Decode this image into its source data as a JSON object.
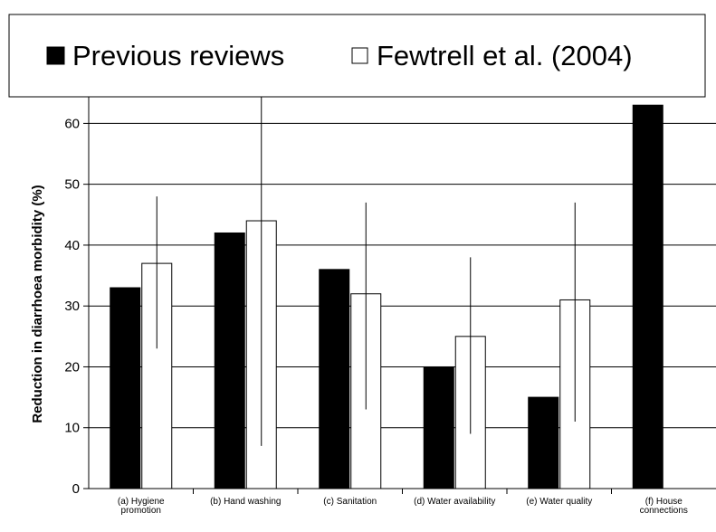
{
  "chart_data": {
    "type": "bar",
    "ylabel": "Reduction in diarrhoea morbidity (%)",
    "xlabel": "",
    "ylim": [
      0,
      66.6
    ],
    "yticks": [
      "0",
      "10",
      "20",
      "30",
      "40",
      "50",
      "60"
    ],
    "grid": true,
    "legend_position": "top",
    "categories": [
      [
        "(a) Hygiene",
        "promotion"
      ],
      [
        "(b) Hand washing"
      ],
      [
        "(c) Sanitation"
      ],
      [
        "(d) Water availability"
      ],
      [
        "(e) Water quality"
      ],
      [
        "(f) House",
        "connections"
      ]
    ],
    "series": [
      {
        "name": "Previous reviews",
        "color": "#000000",
        "values": [
          33,
          42,
          36,
          20,
          15,
          63
        ]
      },
      {
        "name": "Fewtrell et al. (2004)",
        "color": "#ffffff",
        "values": [
          37,
          44,
          32,
          25,
          31,
          null
        ],
        "error_low": [
          23,
          7,
          13,
          9,
          11,
          null
        ],
        "error_high": [
          48,
          67,
          47,
          38,
          47,
          null
        ]
      }
    ]
  }
}
